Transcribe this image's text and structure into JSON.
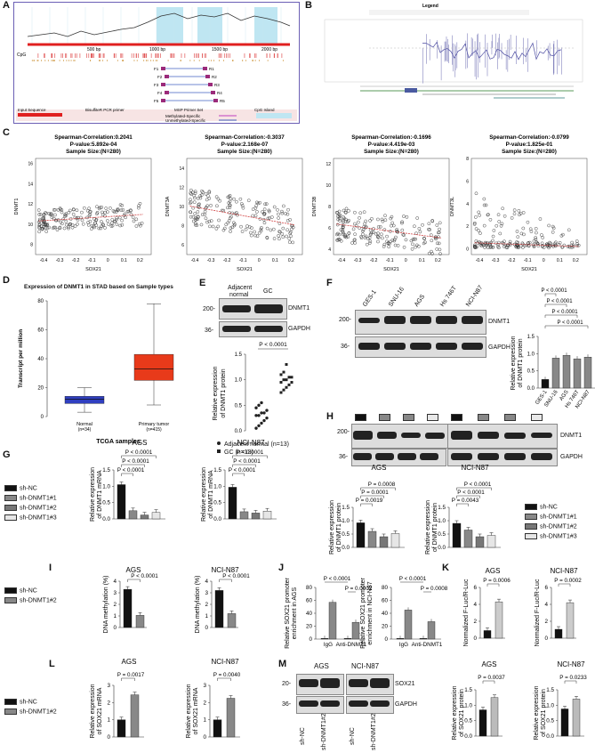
{
  "panels": {
    "A": "A",
    "B": "B",
    "C": "C",
    "D": "D",
    "E": "E",
    "F": "F",
    "G": "G",
    "H": "H",
    "I": "I",
    "J": "J",
    "K": "K",
    "L": "L",
    "M": "M"
  },
  "panelA": {
    "cpg_label": "CpG",
    "ruler": [
      "500 bp",
      "1000 bp",
      "1500 bp",
      "2000 bp"
    ],
    "primers": [
      "F1",
      "F2",
      "F3",
      "F4",
      "F5"
    ],
    "reverse": [
      "R1",
      "R2",
      "R3",
      "R4",
      "R5"
    ],
    "legend": [
      "Input Sequence",
      "BisulfiteR PCR primer",
      "MSP Primer Set",
      "CpG Island",
      "Methylated-Specific",
      "Unmethylated-Specific"
    ]
  },
  "panelB": {
    "legend_title": "Legend"
  },
  "panelC": {
    "plots": [
      {
        "title": "Spearman-Correlation:0.2041",
        "pval": "P-value:5.892e-04",
        "n": "Sample Size:(N=280)",
        "ylabel": "DNMT1",
        "xlabel": "SOX21"
      },
      {
        "title": "Spearman-Correlation:-0.3037",
        "pval": "P-value:2.168e-07",
        "n": "Sample Size:(N=280)",
        "ylabel": "DNMT3A",
        "xlabel": "SOX21"
      },
      {
        "title": "Spearman-Correlation:-0.1696",
        "pval": "P-value:4.419e-03",
        "n": "Sample Size:(N=280)",
        "ylabel": "DNMT3B",
        "xlabel": "SOX21"
      },
      {
        "title": "Spearman-Correlation:-0.0799",
        "pval": "P-value:1.825e-01",
        "n": "Sample Size:(N=280)",
        "ylabel": "DNMT3L",
        "xlabel": "SOX21"
      }
    ],
    "xticks": [
      "-0.4",
      "-0.3",
      "-0.2",
      "-0.1",
      "0",
      "0.1",
      "0.2"
    ]
  },
  "panelD": {
    "title": "Expression of DNMT1 in STAD based on Sample types",
    "ylabel": "Transcript per million",
    "xlabel": "TCGA samples",
    "groups": [
      "Normal\n(n=34)",
      "Primary tumor\n(n=415)"
    ],
    "g1": "Normal",
    "g1n": "(n=34)",
    "g2": "Primary tumor",
    "g2n": "(n=415)",
    "yticks": [
      "0",
      "20",
      "40",
      "60",
      "80"
    ]
  },
  "panelE": {
    "col1": "Adjacent",
    "col1b": "normal",
    "col2": "GC",
    "mw1": "200-",
    "mw2": "36-",
    "p1": "DNMT1",
    "p2": "GAPDH",
    "pval": "P < 0.0001",
    "ylabel1": "Relative expression",
    "ylabel2": "of DNMT1 protein",
    "leg1": "Adjacent normal (n=13)",
    "leg2": "GC (n=13)",
    "yticks": [
      "0.0",
      "0.5",
      "1.0",
      "1.5"
    ]
  },
  "panelF": {
    "lanes": [
      "GES-1",
      "SNU-16",
      "AGS",
      "Hs 746T",
      "NCI-N87"
    ],
    "mw1": "200-",
    "mw2": "36-",
    "p1": "DNMT1",
    "p2": "GAPDH",
    "pvals": [
      "P < 0.0001",
      "P < 0.0001",
      "P < 0.0001",
      "P < 0.0001"
    ],
    "ylabel1": "Relative expression",
    "ylabel2": "of DNMT1 protein",
    "yticks": [
      "0.0",
      "0.5",
      "1.0",
      "1.5"
    ]
  },
  "panelG": {
    "legend": [
      "sh-NC",
      "sh-DNMT1#1",
      "sh-DNMT1#2",
      "sh-DNMT1#3"
    ],
    "left_title": "AGS",
    "right_title": "NCI-N87",
    "ylabel1": "Relative expression",
    "ylabel2": "of DNMT1 mRNA",
    "pvals": [
      "P < 0.0001",
      "P < 0.0001",
      "P < 0.0001"
    ],
    "yticks": [
      "0.0",
      "0.5",
      "1.0",
      "1.5"
    ]
  },
  "panelH": {
    "mw1": "200-",
    "mw2": "36-",
    "p1": "DNMT1",
    "p2": "GAPDH",
    "left_title": "AGS",
    "right_title": "NCI-N87",
    "left_pvals": [
      "P = 0.0008",
      "P = 0.0001",
      "P = 0.0019"
    ],
    "right_pvals": [
      "P < 0.0001",
      "P < 0.0001",
      "P = 0.0043"
    ],
    "ylabel1": "Relative expression",
    "ylabel2": "of DNMT1 protein",
    "legend": [
      "sh-NC",
      "sh-DNMT1#1",
      "sh-DNMT1#2",
      "sh-DNMT1#3"
    ],
    "yticks": [
      "0.0",
      "0.5",
      "1.0",
      "1.5"
    ]
  },
  "panelI": {
    "legend": [
      "sh-NC",
      "sh-DNMT1#2"
    ],
    "left_title": "AGS",
    "right_title": "NCI-N87",
    "ylabel": "DNA methylation (%)",
    "pval": "P < 0.0001",
    "yticks": [
      "0",
      "1",
      "2",
      "3",
      "4"
    ]
  },
  "panelJ": {
    "left_ylabel1": "Relative  SOX21 promoter",
    "left_ylabel2": "enrichment in AGS",
    "right_ylabel1": "Relative  SOX21 promoter",
    "right_ylabel2": "enrichment in NCI-N87",
    "xcats": [
      "IgG",
      "Anti-DNMT1"
    ],
    "left_pvals": [
      "P < 0.0001",
      "P = 0.0002"
    ],
    "right_pvals": [
      "P < 0.0001",
      "P = 0.0008"
    ],
    "yticks": [
      "0",
      "20",
      "40",
      "60",
      "80"
    ]
  },
  "panelK": {
    "left_title": "AGS",
    "right_title": "NCI-N87",
    "ylabel1": "Normalized F-Luc/R-Luc",
    "left_pval": "P = 0.0006",
    "right_pval": "P = 0.0002",
    "yticks": [
      "0",
      "2",
      "4",
      "6"
    ]
  },
  "panelL": {
    "legend": [
      "sh-NC",
      "sh-DNMT1#2"
    ],
    "left_title": "AGS",
    "right_title": "NCI-N87",
    "ylabel1": "Relative expression",
    "ylabel2": "of SOX21 mRNA",
    "left_pval": "P = 0.0017",
    "right_pval": "P = 0.0040",
    "yticks": [
      "0",
      "1",
      "2",
      "3"
    ]
  },
  "panelM": {
    "left_title": "AGS",
    "right_title": "NCI-N87",
    "mw1": "20-",
    "mw2": "36-",
    "p1": "SOX21",
    "p2": "GAPDH",
    "lanes": [
      "sh-NC",
      "sh-DNMT1#2",
      "sh-NC",
      "sh-DNMT1#2"
    ],
    "left_pval": "P = 0.0037",
    "right_pval": "P = 0.0233",
    "ylabel1": "Relative expression",
    "ylabel2": "of SOX21 protein",
    "yticks": [
      "0.0",
      "0.5",
      "1.0",
      "1.5"
    ]
  },
  "chart_data": [
    {
      "type": "bar",
      "id": "F-quant",
      "categories": [
        "GES-1",
        "SNU-16",
        "AGS",
        "Hs 746T",
        "NCI-N87"
      ],
      "values": [
        0.25,
        0.87,
        0.95,
        0.85,
        0.9
      ],
      "ylim": [
        0,
        1.5
      ]
    },
    {
      "type": "bar",
      "id": "G-AGS",
      "categories": [
        "sh-NC",
        "sh-DNMT1#1",
        "sh-DNMT1#2",
        "sh-DNMT1#3"
      ],
      "values": [
        1.05,
        0.25,
        0.12,
        0.2
      ],
      "ylim": [
        0,
        1.5
      ]
    },
    {
      "type": "bar",
      "id": "G-NCI-N87",
      "categories": [
        "sh-NC",
        "sh-DNMT1#1",
        "sh-DNMT1#2",
        "sh-DNMT1#3"
      ],
      "values": [
        0.97,
        0.22,
        0.18,
        0.24
      ],
      "ylim": [
        0,
        1.5
      ]
    },
    {
      "type": "bar",
      "id": "H-AGS",
      "categories": [
        "sh-NC",
        "sh-DNMT1#1",
        "sh-DNMT1#2",
        "sh-DNMT1#3"
      ],
      "values": [
        0.92,
        0.6,
        0.4,
        0.52
      ],
      "ylim": [
        0,
        1.5
      ]
    },
    {
      "type": "bar",
      "id": "H-NCI-N87",
      "categories": [
        "sh-NC",
        "sh-DNMT1#1",
        "sh-DNMT1#2",
        "sh-DNMT1#3"
      ],
      "values": [
        0.9,
        0.65,
        0.4,
        0.45
      ],
      "ylim": [
        0,
        1.5
      ]
    },
    {
      "type": "bar",
      "id": "I-AGS",
      "categories": [
        "sh-NC",
        "sh-DNMT1#2"
      ],
      "values": [
        3.3,
        1.05
      ],
      "ylim": [
        0,
        4
      ]
    },
    {
      "type": "bar",
      "id": "I-NCI-N87",
      "categories": [
        "sh-NC",
        "sh-DNMT1#2"
      ],
      "values": [
        3.2,
        1.2
      ],
      "ylim": [
        0,
        4
      ]
    },
    {
      "type": "bar",
      "id": "J-AGS",
      "series": [
        {
          "values": [
            1,
            1
          ]
        },
        {
          "values": [
            57,
            26
          ]
        }
      ],
      "categories": [
        "IgG",
        "Anti-DNMT1"
      ],
      "ylim": [
        0,
        80
      ]
    },
    {
      "type": "bar",
      "id": "J-NCI-N87",
      "series": [
        {
          "values": [
            1,
            1
          ]
        },
        {
          "values": [
            45,
            27
          ]
        }
      ],
      "categories": [
        "IgG",
        "Anti-DNMT1"
      ],
      "ylim": [
        0,
        80
      ]
    },
    {
      "type": "bar",
      "id": "K-AGS",
      "categories": [
        "sh-NC",
        "sh-DNMT1#2"
      ],
      "values": [
        0.9,
        4.3
      ],
      "ylim": [
        0,
        6
      ]
    },
    {
      "type": "bar",
      "id": "K-NCI-N87",
      "categories": [
        "sh-NC",
        "sh-DNMT1#2"
      ],
      "values": [
        1.05,
        4.2
      ],
      "ylim": [
        0,
        6
      ]
    },
    {
      "type": "bar",
      "id": "L-AGS",
      "categories": [
        "sh-NC",
        "sh-DNMT1#2"
      ],
      "values": [
        1.0,
        2.45
      ],
      "ylim": [
        0,
        3
      ]
    },
    {
      "type": "bar",
      "id": "L-NCI-N87",
      "categories": [
        "sh-NC",
        "sh-DNMT1#2"
      ],
      "values": [
        1.0,
        2.25
      ],
      "ylim": [
        0,
        3
      ]
    },
    {
      "type": "bar",
      "id": "M-AGS",
      "categories": [
        "sh-NC",
        "sh-DNMT1#2"
      ],
      "values": [
        0.85,
        1.25
      ],
      "ylim": [
        0,
        1.5
      ]
    },
    {
      "type": "bar",
      "id": "M-NCI-N87",
      "categories": [
        "sh-NC",
        "sh-DNMT1#2"
      ],
      "values": [
        0.88,
        1.2
      ],
      "ylim": [
        0,
        1.5
      ]
    },
    {
      "type": "scatter",
      "id": "E-dots",
      "series": [
        {
          "values": [
            0.05,
            0.1,
            0.15,
            0.2,
            0.25,
            0.3,
            0.3,
            0.35,
            0.35,
            0.4,
            0.45,
            0.5,
            0.55
          ]
        },
        {
          "values": [
            0.75,
            0.8,
            0.85,
            0.9,
            0.95,
            0.95,
            1.0,
            1.0,
            1.05,
            1.05,
            1.1,
            1.15,
            1.3
          ]
        }
      ],
      "ylim": [
        0,
        1.5
      ]
    },
    {
      "type": "bar",
      "id": "D-box",
      "categories": [
        "Normal",
        "Primary tumor"
      ],
      "values": [
        12,
        33
      ],
      "ylim": [
        0,
        80
      ]
    }
  ]
}
